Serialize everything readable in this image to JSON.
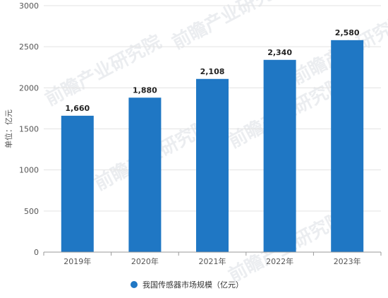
{
  "chart_data": {
    "type": "bar",
    "categories": [
      "2019年",
      "2020年",
      "2021年",
      "2022年",
      "2023年"
    ],
    "series": [
      {
        "name": "我国传感器市场规模（亿元）",
        "values": [
          1660,
          1880,
          2108,
          2340,
          2580
        ]
      }
    ],
    "data_labels": [
      "1,660",
      "1,880",
      "2,108",
      "2,340",
      "2,580"
    ],
    "ylabel": "单位：亿元",
    "ylim": [
      0,
      3000
    ],
    "yticks": [
      0,
      500,
      1000,
      1500,
      2000,
      2500,
      3000
    ],
    "grid": true,
    "legend_position": "bottom",
    "bar_color": "#1f77c4"
  },
  "watermark": {
    "text": "前瞻产业研究院"
  }
}
